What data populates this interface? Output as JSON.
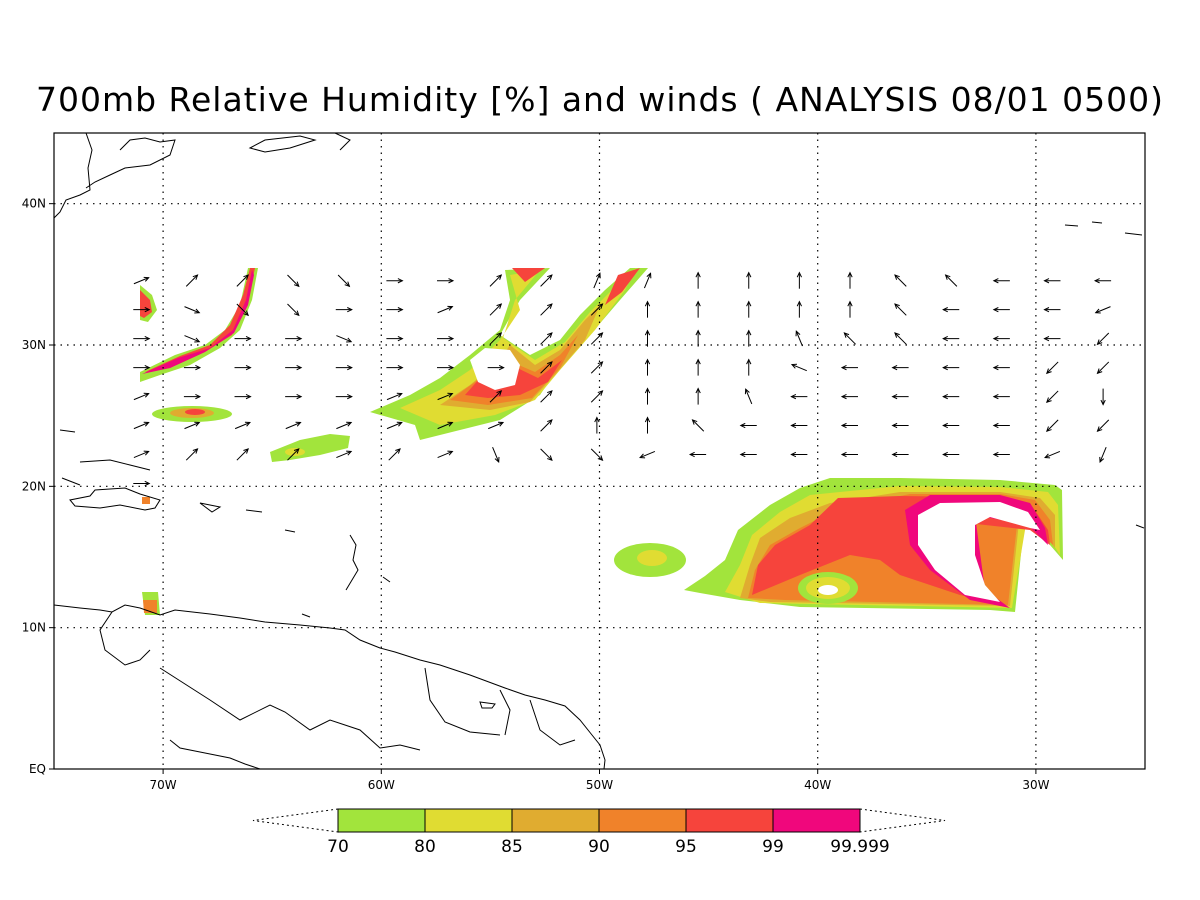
{
  "title": "700mb Relative Humidity [%] and winds ( ANALYSIS 08/01 0500)",
  "map": {
    "lon_range": [
      -75,
      -25
    ],
    "lat_range": [
      0,
      45
    ],
    "lon_ticks": [
      {
        "value": -70,
        "label": "70W"
      },
      {
        "value": -60,
        "label": "60W"
      },
      {
        "value": -50,
        "label": "50W"
      },
      {
        "value": -40,
        "label": "40W"
      },
      {
        "value": -30,
        "label": "30W"
      }
    ],
    "lat_ticks": [
      {
        "value": 0,
        "label": "EQ"
      },
      {
        "value": 10,
        "label": "10N"
      },
      {
        "value": 20,
        "label": "20N"
      },
      {
        "value": 30,
        "label": "30N"
      },
      {
        "value": 40,
        "label": "40N"
      }
    ],
    "grid": "dotted"
  },
  "colorbar": {
    "levels": [
      "70",
      "80",
      "85",
      "90",
      "95",
      "99",
      "99.999"
    ],
    "colors": [
      "#a2e43c",
      "#e0dc32",
      "#e0ac30",
      "#f0822a",
      "#f6443c",
      "#f0077c"
    ],
    "extend": "both"
  },
  "humidity_shades": {
    "colors": {
      "c70": "#a2e43c",
      "c80": "#e0dc32",
      "c85": "#e0ac30",
      "c90": "#f0822a",
      "c95": "#f6443c",
      "c99": "#f0077c"
    }
  },
  "winds": {
    "lon_start": -71,
    "lon_step": 2.32,
    "ncols": 20,
    "lat_start": 12,
    "lat_step": 2.05,
    "nrows": 12,
    "dirs": [
      "ESE,E,ESE,SE,SE,SE,S,S,SSW,SSW,S,S,SSE,NE,NNW,NNW,NNW,NW,NE,NE",
      "ESE,ESE,ESE,SE,SE,SE,SE,SSE,SSW,SW,SW,SW,SW,SSW,NW,NW,N,NW,NE,NE",
      "E,ESE,E,E,ESE,SE,SE,SSE,SSW,SW,SW,SW,SW,SSW,NW,NW,NW,NW,N,NE",
      "E,E,E,E,E,E,SSE,SSE,SSW,SW,SW,SW,SW,SSW,WSW,W,WNW,WNW,NW,N",
      "E,E,E,E,E,E,E,SE,S,SSW,SW,WSW,W,W,W,W,WSW,WSW,SW,SSW",
      "ENE,NE,NE,NE,ENE,NE,ENE,SSE,SE,SE,WSW,W,W,W,W,W,W,W,WSW,SSW",
      "ENE,ENE,ENE,ENE,ENE,ENE,ENE,ENE,NE,N,N,NW,W,W,W,W,W,W,SW,SW",
      "ENE,E,E,E,E,ENE,ENE,NE,NE,NE,N,N,NNW,W,W,W,W,W,SW,S",
      "E,E,E,E,E,E,E,E,NE,NE,N,N,N,WNW,W,W,W,W,SW,SW",
      "E,ESE,E,E,ESE,E,E,NE,NE,NE,N,N,N,NNW,NW,NW,W,W,W,SW",
      "E,ESE,SE,SE,E,E,ENE,NE,NE,NE,N,N,N,N,N,NW,W,W,W,WSW",
      "ENE,NE,NE,SE,SE,E,E,NE,NE,NNE,NNE,N,N,N,N,NW,NW,W,W,W"
    ],
    "masks": [
      "0,0,0,0,0,0,0,0,0,0,0,0,0,0,0,0,0,0,0,0",
      "0,0,0,0,0,0,0,0,0,0,0,0,0,0,0,0,0,0,0,0",
      "0,0,0,0,0,0,0,0,0,0,0,0,0,0,0,0,0,0,0,0",
      "0,0,0,0,0,0,0,0,0,0,0,0,0,0,0,0,0,0,0,0",
      "1,0,0,0,0,0,0,0,0,0,0,0,0,0,0,0,0,0,0,0",
      "1,1,1,1,1,1,1,1,1,1,1,1,1,1,1,1,1,1,1,1",
      "1,1,1,1,1,1,1,1,1,1,1,1,1,1,1,1,1,1,1,1",
      "1,1,1,1,1,1,1,1,1,1,1,1,1,1,1,1,1,1,1,1",
      "1,1,1,1,1,1,1,1,1,1,1,1,1,1,1,1,1,1,1,1",
      "1,1,1,1,1,1,1,1,1,1,1,1,1,1,1,1,1,1,1,1",
      "1,1,1,1,1,1,1,1,1,1,1,1,1,1,1,1,1,1,1,1",
      "1,1,1,1,1,1,1,1,1,1,1,1,1,1,1,1,1,1,1,1"
    ]
  }
}
